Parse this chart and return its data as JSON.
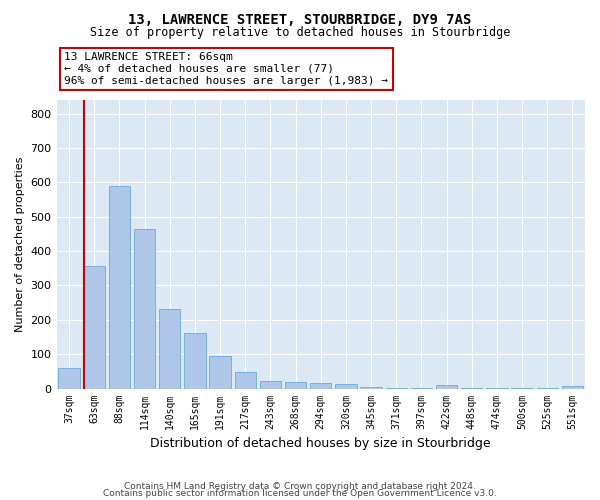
{
  "title": "13, LAWRENCE STREET, STOURBRIDGE, DY9 7AS",
  "subtitle": "Size of property relative to detached houses in Stourbridge",
  "xlabel": "Distribution of detached houses by size in Stourbridge",
  "ylabel": "Number of detached properties",
  "categories": [
    "37sqm",
    "63sqm",
    "88sqm",
    "114sqm",
    "140sqm",
    "165sqm",
    "191sqm",
    "217sqm",
    "243sqm",
    "268sqm",
    "294sqm",
    "320sqm",
    "345sqm",
    "371sqm",
    "397sqm",
    "422sqm",
    "448sqm",
    "474sqm",
    "500sqm",
    "525sqm",
    "551sqm"
  ],
  "values": [
    60,
    358,
    590,
    465,
    232,
    162,
    95,
    47,
    23,
    20,
    16,
    13,
    5,
    3,
    2,
    10,
    1,
    1,
    1,
    1,
    7
  ],
  "bar_color": "#aec6e8",
  "bar_edgecolor": "#5a9fd4",
  "vline_color": "#cc0000",
  "annotation_lines": [
    "13 LAWRENCE STREET: 66sqm",
    "← 4% of detached houses are smaller (77)",
    "96% of semi-detached houses are larger (1,983) →"
  ],
  "ylim": [
    0,
    840
  ],
  "yticks": [
    0,
    100,
    200,
    300,
    400,
    500,
    600,
    700,
    800
  ],
  "background_color": "#dce9f5",
  "footer_line1": "Contains HM Land Registry data © Crown copyright and database right 2024.",
  "footer_line2": "Contains public sector information licensed under the Open Government Licence v3.0."
}
